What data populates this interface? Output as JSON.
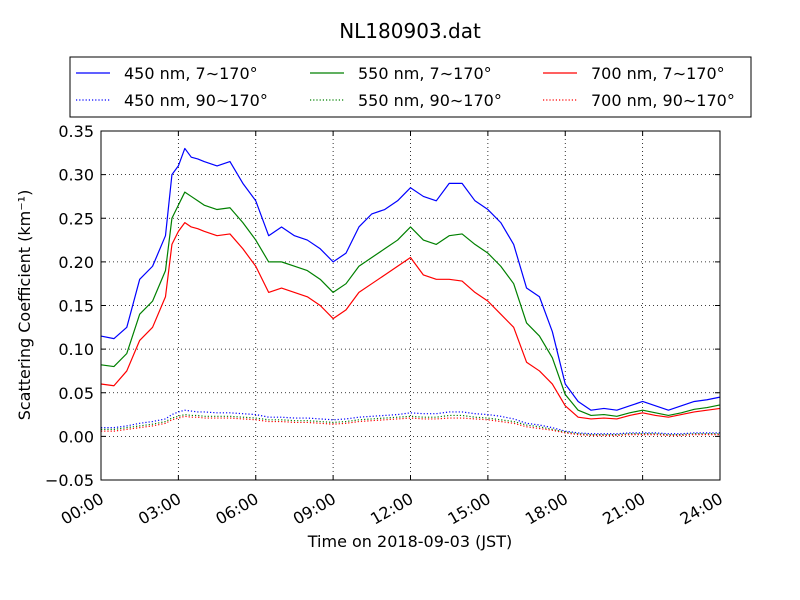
{
  "chart_data": {
    "type": "line",
    "title": "NL180903.dat",
    "xlabel": "Time on 2018-09-03 (JST)",
    "ylabel": "Scattering Coefficient (km⁻¹)",
    "xlim": [
      0,
      24
    ],
    "ylim": [
      -0.05,
      0.35
    ],
    "x_tick_labels": [
      "00:00",
      "03:00",
      "06:00",
      "09:00",
      "12:00",
      "15:00",
      "18:00",
      "21:00",
      "24:00"
    ],
    "y_tick_labels": [
      "−0.05",
      "0.00",
      "0.05",
      "0.10",
      "0.15",
      "0.20",
      "0.25",
      "0.30",
      "0.35"
    ],
    "grid": true,
    "legend_placement": "top, above plot, 3 columns",
    "x": [
      0,
      0.5,
      1,
      1.5,
      2,
      2.5,
      2.75,
      3,
      3.25,
      3.5,
      3.75,
      4,
      4.5,
      5,
      5.5,
      6,
      6.5,
      7,
      7.5,
      8,
      8.5,
      9,
      9.5,
      10,
      10.5,
      11,
      11.5,
      12,
      12.5,
      13,
      13.5,
      14,
      14.5,
      15,
      15.5,
      16,
      16.5,
      17,
      17.5,
      18,
      18.5,
      19,
      19.5,
      20,
      20.5,
      21,
      21.5,
      22,
      22.5,
      23,
      23.5,
      24
    ],
    "series": [
      {
        "name": "450 nm, 7∼170°",
        "color": "#0000ff",
        "style": "solid",
        "values": [
          0.115,
          0.112,
          0.125,
          0.18,
          0.195,
          0.23,
          0.3,
          0.31,
          0.33,
          0.32,
          0.318,
          0.315,
          0.31,
          0.315,
          0.29,
          0.27,
          0.23,
          0.24,
          0.23,
          0.225,
          0.215,
          0.2,
          0.21,
          0.24,
          0.255,
          0.26,
          0.27,
          0.285,
          0.275,
          0.27,
          0.29,
          0.29,
          0.27,
          0.26,
          0.245,
          0.22,
          0.17,
          0.16,
          0.12,
          0.06,
          0.04,
          0.03,
          0.032,
          0.03,
          0.035,
          0.04,
          0.035,
          0.03,
          0.035,
          0.04,
          0.042,
          0.045
        ]
      },
      {
        "name": "550 nm, 7∼170°",
        "color": "#008000",
        "style": "solid",
        "values": [
          0.082,
          0.08,
          0.095,
          0.14,
          0.155,
          0.19,
          0.25,
          0.265,
          0.28,
          0.275,
          0.27,
          0.265,
          0.26,
          0.262,
          0.245,
          0.225,
          0.2,
          0.2,
          0.195,
          0.19,
          0.18,
          0.165,
          0.175,
          0.195,
          0.205,
          0.215,
          0.225,
          0.24,
          0.225,
          0.22,
          0.23,
          0.232,
          0.22,
          0.21,
          0.195,
          0.175,
          0.13,
          0.115,
          0.09,
          0.048,
          0.03,
          0.024,
          0.025,
          0.023,
          0.027,
          0.03,
          0.027,
          0.024,
          0.027,
          0.031,
          0.033,
          0.036
        ]
      },
      {
        "name": "700 nm, 7∼170°",
        "color": "#ff0000",
        "style": "solid",
        "values": [
          0.06,
          0.058,
          0.075,
          0.11,
          0.125,
          0.16,
          0.22,
          0.235,
          0.245,
          0.24,
          0.238,
          0.235,
          0.23,
          0.232,
          0.215,
          0.195,
          0.165,
          0.17,
          0.165,
          0.16,
          0.15,
          0.135,
          0.145,
          0.165,
          0.175,
          0.185,
          0.195,
          0.205,
          0.185,
          0.18,
          0.18,
          0.178,
          0.165,
          0.155,
          0.14,
          0.125,
          0.085,
          0.075,
          0.06,
          0.035,
          0.022,
          0.02,
          0.021,
          0.02,
          0.024,
          0.027,
          0.024,
          0.022,
          0.025,
          0.028,
          0.03,
          0.032
        ]
      },
      {
        "name": "450 nm, 90∼170°",
        "color": "#0000ff",
        "style": "dotted",
        "values": [
          0.01,
          0.01,
          0.012,
          0.015,
          0.017,
          0.02,
          0.025,
          0.028,
          0.03,
          0.029,
          0.028,
          0.028,
          0.027,
          0.027,
          0.026,
          0.025,
          0.022,
          0.022,
          0.021,
          0.021,
          0.02,
          0.019,
          0.02,
          0.022,
          0.023,
          0.024,
          0.025,
          0.027,
          0.026,
          0.026,
          0.028,
          0.028,
          0.026,
          0.025,
          0.023,
          0.02,
          0.015,
          0.013,
          0.01,
          0.006,
          0.004,
          0.003,
          0.003,
          0.003,
          0.004,
          0.004,
          0.004,
          0.003,
          0.003,
          0.004,
          0.004,
          0.004
        ]
      },
      {
        "name": "550 nm, 90∼170°",
        "color": "#008000",
        "style": "dotted",
        "values": [
          0.008,
          0.008,
          0.01,
          0.012,
          0.014,
          0.017,
          0.021,
          0.023,
          0.025,
          0.024,
          0.024,
          0.023,
          0.023,
          0.023,
          0.022,
          0.021,
          0.019,
          0.019,
          0.018,
          0.018,
          0.017,
          0.016,
          0.017,
          0.019,
          0.02,
          0.021,
          0.022,
          0.023,
          0.022,
          0.022,
          0.024,
          0.024,
          0.022,
          0.021,
          0.019,
          0.017,
          0.013,
          0.011,
          0.008,
          0.005,
          0.003,
          0.002,
          0.002,
          0.002,
          0.003,
          0.003,
          0.003,
          0.002,
          0.002,
          0.003,
          0.003,
          0.003
        ]
      },
      {
        "name": "700 nm, 90∼170°",
        "color": "#ff0000",
        "style": "dotted",
        "values": [
          0.006,
          0.006,
          0.008,
          0.01,
          0.012,
          0.015,
          0.019,
          0.021,
          0.023,
          0.022,
          0.022,
          0.021,
          0.021,
          0.021,
          0.02,
          0.019,
          0.017,
          0.017,
          0.016,
          0.016,
          0.015,
          0.014,
          0.015,
          0.017,
          0.018,
          0.019,
          0.02,
          0.021,
          0.02,
          0.02,
          0.021,
          0.021,
          0.02,
          0.019,
          0.017,
          0.015,
          0.011,
          0.009,
          0.007,
          0.004,
          0.002,
          0.001,
          0.001,
          0.001,
          0.002,
          0.002,
          0.002,
          0.001,
          0.001,
          0.002,
          0.002,
          0.002
        ]
      }
    ],
    "legend_order": [
      0,
      1,
      2,
      3,
      4,
      5
    ]
  }
}
